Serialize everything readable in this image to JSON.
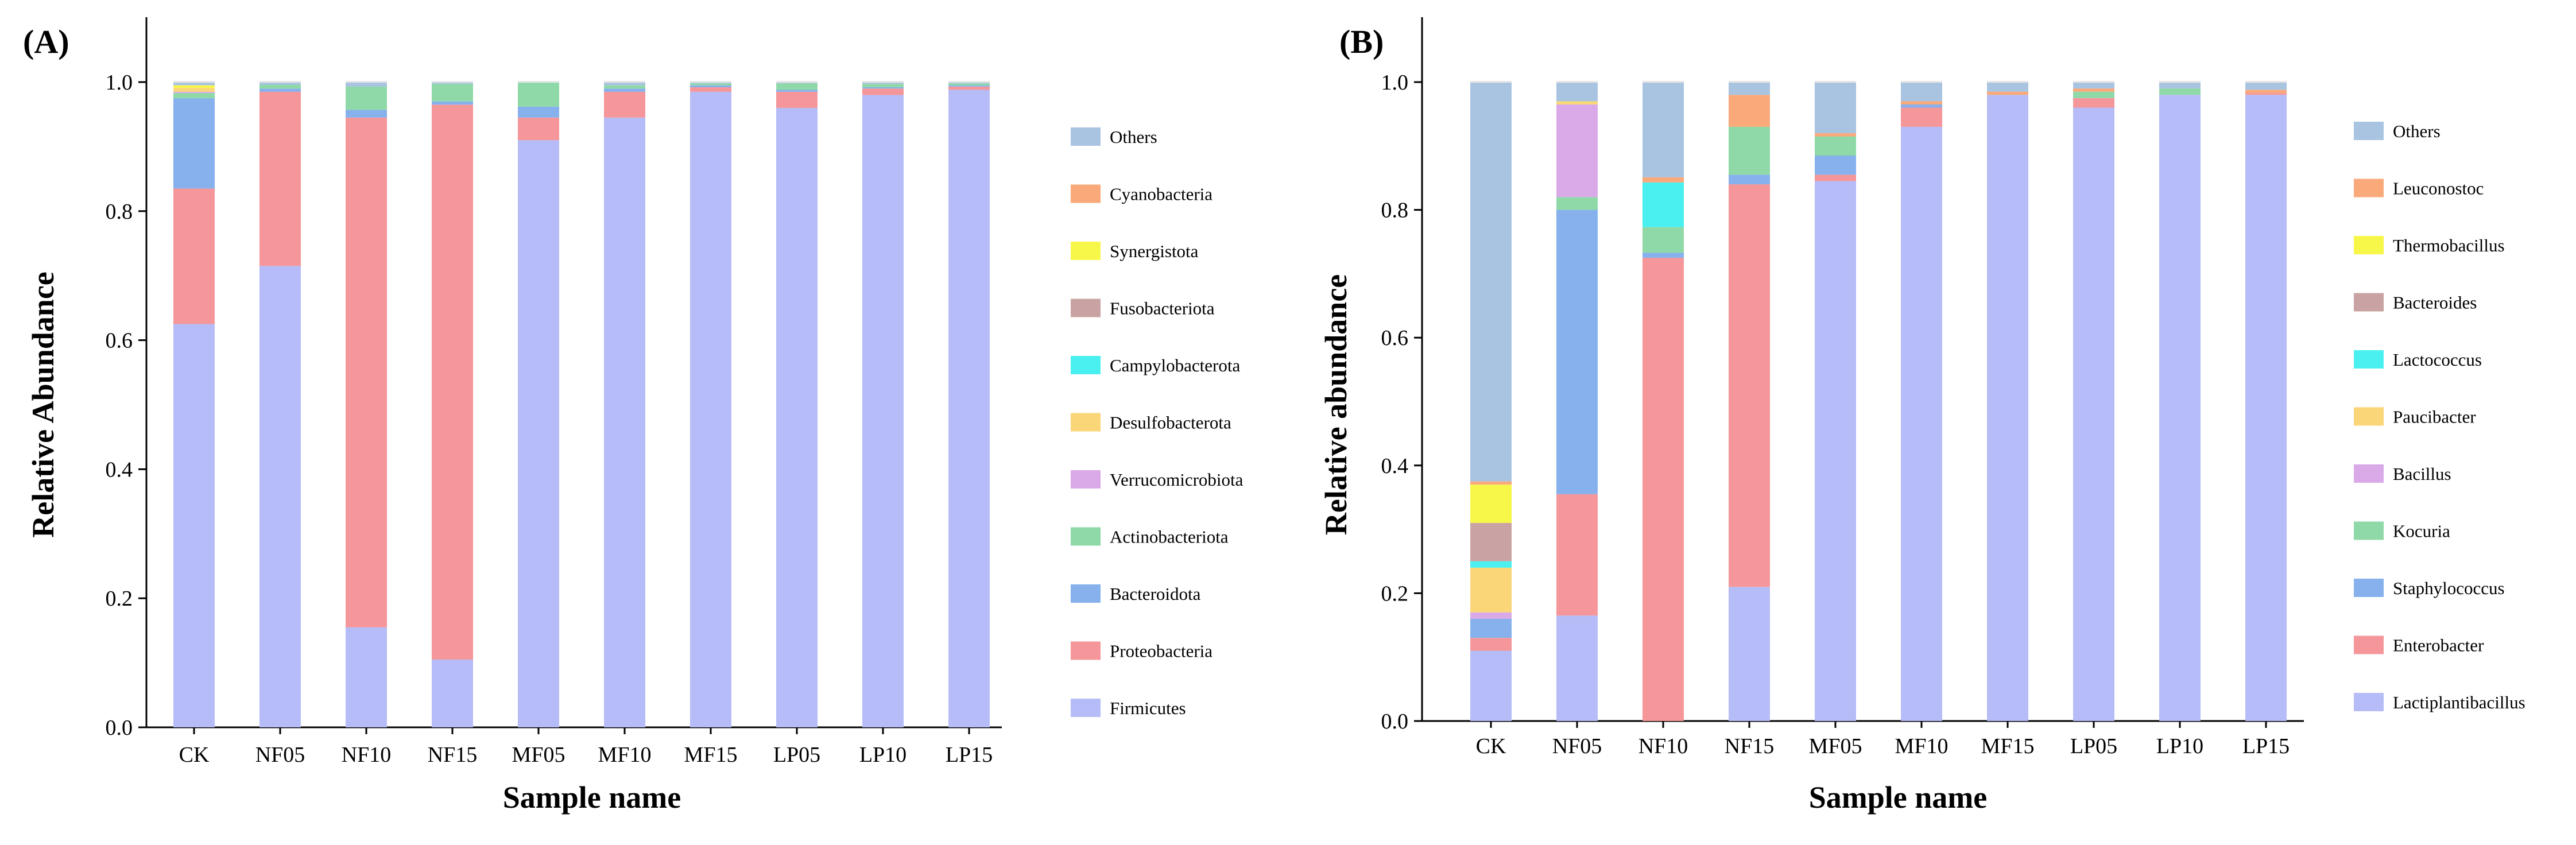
{
  "colors": {
    "Others": "#a9c4e0",
    "Cyanobacteria": "#f9a97a",
    "Synergistota": "#f7f74a",
    "Fusobacteriota": "#c9a3a3",
    "Campylobacterota": "#4af0f0",
    "Desulfobacterota": "#fbd679",
    "Verrucomicrobiota": "#d9a9e8",
    "Actinobacteriota": "#8fd9a8",
    "Bacteroidota": "#86b1ec",
    "Proteobacteria": "#f5979a",
    "Firmicutes": "#b5bcf7",
    "Leuconostoc": "#f9a97a",
    "Thermobacillus": "#f7f74a",
    "Bacteroides": "#c9a3a3",
    "Lactococcus": "#4af0f0",
    "Paucibacter": "#fbd679",
    "Bacillus": "#d9a9e8",
    "Kocuria": "#8fd9a8",
    "Staphylococcus": "#86b1ec",
    "Enterobacter": "#f5979a",
    "Lactiplantibacillus": "#b5bcf7",
    "dark": "#1a1a1a"
  },
  "chart_data": [
    {
      "type": "bar",
      "stacked": true,
      "panel": "(A)",
      "xlabel": "Sample name",
      "ylabel": "Relative Abundance",
      "ylim": [
        0,
        1.0
      ],
      "yticks": [
        "0.0",
        "0.2",
        "0.4",
        "0.6",
        "0.8",
        "1.0"
      ],
      "categories": [
        "CK",
        "NF05",
        "NF10",
        "NF15",
        "MF05",
        "MF10",
        "MF15",
        "LP05",
        "LP10",
        "LP15"
      ],
      "series": [
        {
          "name": "Firmicutes",
          "values": [
            0.625,
            0.715,
            0.155,
            0.105,
            0.91,
            0.945,
            0.985,
            0.96,
            0.98,
            0.988
          ]
        },
        {
          "name": "Proteobacteria",
          "values": [
            0.21,
            0.27,
            0.79,
            0.86,
            0.035,
            0.04,
            0.007,
            0.025,
            0.01,
            0.005
          ]
        },
        {
          "name": "Bacteroidota",
          "values": [
            0.14,
            0.005,
            0.012,
            0.005,
            0.017,
            0.005,
            0.003,
            0.003,
            0.002,
            0.002
          ]
        },
        {
          "name": "Actinobacteriota",
          "values": [
            0.008,
            0.006,
            0.036,
            0.027,
            0.038,
            0.005,
            0.003,
            0.01,
            0.005,
            0.003
          ]
        },
        {
          "name": "Verrucomicrobiota",
          "values": [
            0.002,
            0,
            0,
            0,
            0,
            0,
            0,
            0,
            0,
            0
          ]
        },
        {
          "name": "Desulfobacterota",
          "values": [
            0.006,
            0,
            0,
            0,
            0,
            0,
            0,
            0,
            0,
            0
          ]
        },
        {
          "name": "Campylobacterota",
          "values": [
            0,
            0,
            0,
            0,
            0,
            0,
            0,
            0,
            0,
            0
          ]
        },
        {
          "name": "Fusobacteriota",
          "values": [
            0,
            0,
            0,
            0,
            0,
            0,
            0,
            0,
            0,
            0
          ]
        },
        {
          "name": "Synergistota",
          "values": [
            0.004,
            0,
            0,
            0,
            0,
            0,
            0,
            0,
            0,
            0
          ]
        },
        {
          "name": "Cyanobacteria",
          "values": [
            0,
            0,
            0,
            0,
            0,
            0,
            0,
            0,
            0,
            0
          ]
        },
        {
          "name": "Others",
          "values": [
            0.005,
            0.004,
            0.007,
            0.003,
            0,
            0.005,
            0.002,
            0.002,
            0.003,
            0.002
          ]
        }
      ],
      "legend": [
        "Others",
        "Cyanobacteria",
        "Synergistota",
        "Fusobacteriota",
        "Campylobacterota",
        "Desulfobacterota",
        "Verrucomicrobiota",
        "Actinobacteriota",
        "Bacteroidota",
        "Proteobacteria",
        "Firmicutes"
      ]
    },
    {
      "type": "bar",
      "stacked": true,
      "panel": "(B)",
      "xlabel": "Sample name",
      "ylabel": "Relative abundance",
      "ylim": [
        0,
        1.0
      ],
      "yticks": [
        "0.0",
        "0.2",
        "0.4",
        "0.6",
        "0.8",
        "1.0"
      ],
      "categories": [
        "CK",
        "NF05",
        "NF10",
        "NF15",
        "MF05",
        "MF10",
        "MF15",
        "LP05",
        "LP10",
        "LP15"
      ],
      "series": [
        {
          "name": "Lactiplantibacillus",
          "values": [
            0.11,
            0.165,
            0,
            0.21,
            0.845,
            0.93,
            0.98,
            0.96,
            0.98,
            0.98
          ]
        },
        {
          "name": "Enterobacter",
          "values": [
            0.02,
            0.19,
            0.725,
            0.63,
            0.01,
            0.03,
            0,
            0.015,
            0,
            0.003
          ]
        },
        {
          "name": "Staphylococcus",
          "values": [
            0.03,
            0.445,
            0.008,
            0.015,
            0.03,
            0.005,
            0,
            0,
            0,
            0
          ]
        },
        {
          "name": "Kocuria",
          "values": [
            0,
            0.02,
            0.04,
            0.075,
            0.03,
            0,
            0,
            0.01,
            0.01,
            0
          ]
        },
        {
          "name": "Bacillus",
          "values": [
            0.01,
            0.145,
            0,
            0,
            0,
            0,
            0,
            0,
            0,
            0
          ]
        },
        {
          "name": "Paucibacter",
          "values": [
            0.07,
            0.005,
            0,
            0,
            0,
            0,
            0,
            0,
            0,
            0
          ]
        },
        {
          "name": "Lactococcus",
          "values": [
            0.01,
            0,
            0.07,
            0,
            0,
            0,
            0,
            0,
            0,
            0
          ]
        },
        {
          "name": "Bacteroides",
          "values": [
            0.06,
            0,
            0,
            0,
            0,
            0,
            0,
            0,
            0,
            0
          ]
        },
        {
          "name": "Thermobacillus",
          "values": [
            0.06,
            0,
            0,
            0,
            0,
            0,
            0,
            0,
            0,
            0
          ]
        },
        {
          "name": "Leuconostoc",
          "values": [
            0.005,
            0,
            0.008,
            0.05,
            0.005,
            0.005,
            0.005,
            0.005,
            0,
            0.005
          ]
        },
        {
          "name": "Others",
          "values": [
            0.625,
            0.03,
            0.149,
            0.02,
            0.08,
            0.03,
            0.015,
            0.01,
            0.01,
            0.012
          ]
        }
      ],
      "legend": [
        "Others",
        "Leuconostoc",
        "Thermobacillus",
        "Bacteroides",
        "Lactococcus",
        "Paucibacter",
        "Bacillus",
        "Kocuria",
        "Staphylococcus",
        "Enterobacter",
        "Lactiplantibacillus"
      ]
    }
  ]
}
